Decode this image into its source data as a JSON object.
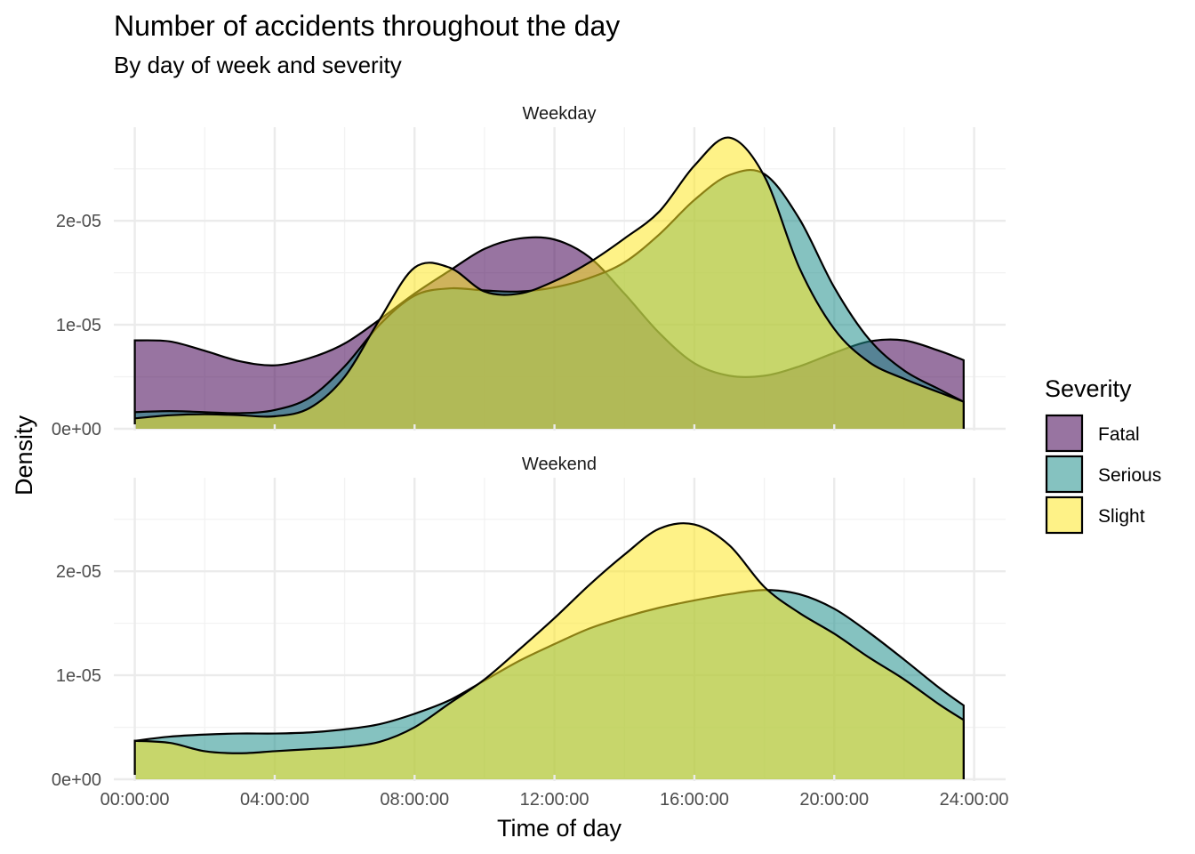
{
  "chart_data": {
    "type": "area",
    "title": "Number of accidents throughout the day",
    "subtitle": "By day of week and severity",
    "xlabel": "Time of day",
    "ylabel": "Density",
    "x_ticks": [
      "00:00:00",
      "04:00:00",
      "08:00:00",
      "12:00:00",
      "16:00:00",
      "20:00:00",
      "24:00:00"
    ],
    "y_ticks": [
      "0e+00",
      "1e-05",
      "2e-05"
    ],
    "x_units": "hours",
    "xlim": [
      -0.6,
      24.9
    ],
    "ylim": [
      0,
      2.9e-05
    ],
    "grid": true,
    "legend": {
      "title": "Severity",
      "position": "right",
      "entries": [
        {
          "name": "Fatal",
          "color": "#440154"
        },
        {
          "name": "Serious",
          "color": "#21908C"
        },
        {
          "name": "Slight",
          "color": "#FDE725"
        }
      ]
    },
    "panels": [
      {
        "label": "Weekday",
        "series": [
          {
            "name": "Fatal",
            "x": [
              0,
              1,
              2,
              3,
              4,
              5,
              6,
              7,
              8,
              9,
              10,
              11,
              12,
              13,
              14,
              15,
              16,
              17,
              18,
              19,
              20,
              21,
              22,
              23,
              23.7
            ],
            "y": [
              8.5e-06,
              8.4e-06,
              7.5e-06,
              6.5e-06,
              6.1e-06,
              6.8e-06,
              8.2e-06,
              1.05e-05,
              1.3e-05,
              1.52e-05,
              1.73e-05,
              1.83e-05,
              1.82e-05,
              1.65e-05,
              1.3e-05,
              9.2e-06,
              6.3e-06,
              5.1e-06,
              5.1e-06,
              6e-06,
              7.3e-06,
              8.4e-06,
              8.5e-06,
              7.5e-06,
              6.6e-06
            ]
          },
          {
            "name": "Serious",
            "x": [
              0,
              1,
              2,
              3,
              4,
              5,
              6,
              7,
              8,
              9,
              10,
              11,
              12,
              13,
              14,
              15,
              16,
              17,
              18,
              19,
              20,
              21,
              22,
              23,
              23.7
            ],
            "y": [
              1.6e-06,
              1.7e-06,
              1.6e-06,
              1.5e-06,
              1.8e-06,
              3e-06,
              6e-06,
              1e-05,
              1.28e-05,
              1.35e-05,
              1.33e-05,
              1.32e-05,
              1.36e-05,
              1.45e-05,
              1.6e-05,
              1.87e-05,
              2.2e-05,
              2.44e-05,
              2.45e-05,
              2.02e-05,
              1.36e-05,
              8.6e-06,
              5.6e-06,
              3.8e-06,
              2.6e-06
            ]
          },
          {
            "name": "Slight",
            "x": [
              0,
              1,
              2,
              3,
              4,
              5,
              6,
              7,
              8,
              9,
              10,
              11,
              12,
              13,
              14,
              15,
              16,
              17,
              18,
              19,
              20,
              21,
              22,
              23,
              23.7
            ],
            "y": [
              1e-06,
              1.3e-06,
              1.4e-06,
              1.3e-06,
              1.2e-06,
              2e-06,
              5e-06,
              1.05e-05,
              1.55e-05,
              1.55e-05,
              1.32e-05,
              1.3e-05,
              1.42e-05,
              1.6e-05,
              1.83e-05,
              2.09e-05,
              2.53e-05,
              2.8e-05,
              2.43e-05,
              1.55e-05,
              9.6e-06,
              6.4e-06,
              4.8e-06,
              3.5e-06,
              2.6e-06
            ]
          }
        ]
      },
      {
        "label": "Weekend",
        "series": [
          {
            "name": "Serious",
            "x": [
              0,
              1,
              2,
              3,
              4,
              5,
              6,
              7,
              8,
              9,
              10,
              11,
              12,
              13,
              14,
              15,
              16,
              17,
              18,
              19,
              20,
              21,
              22,
              23,
              23.7
            ],
            "y": [
              3.7e-06,
              4.1e-06,
              4.3e-06,
              4.4e-06,
              4.4e-06,
              4.5e-06,
              4.8e-06,
              5.3e-06,
              6.3e-06,
              7.6e-06,
              9.5e-06,
              1.14e-05,
              1.3e-05,
              1.45e-05,
              1.56e-05,
              1.65e-05,
              1.72e-05,
              1.78e-05,
              1.82e-05,
              1.78e-05,
              1.64e-05,
              1.41e-05,
              1.15e-05,
              8.8e-06,
              7.1e-06
            ]
          },
          {
            "name": "Slight",
            "x": [
              0,
              1,
              2,
              3,
              4,
              5,
              6,
              7,
              8,
              9,
              10,
              11,
              12,
              13,
              14,
              15,
              16,
              17,
              18,
              19,
              20,
              21,
              22,
              23,
              23.7
            ],
            "y": [
              3.7e-06,
              3.5e-06,
              2.7e-06,
              2.5e-06,
              2.7e-06,
              2.9e-06,
              3.1e-06,
              3.6e-06,
              5e-06,
              7.3e-06,
              9.6e-06,
              1.25e-05,
              1.55e-05,
              1.87e-05,
              2.16e-05,
              2.41e-05,
              2.45e-05,
              2.25e-05,
              1.85e-05,
              1.6e-05,
              1.4e-05,
              1.17e-05,
              9.6e-06,
              7.2e-06,
              5.7e-06
            ]
          }
        ]
      }
    ]
  }
}
